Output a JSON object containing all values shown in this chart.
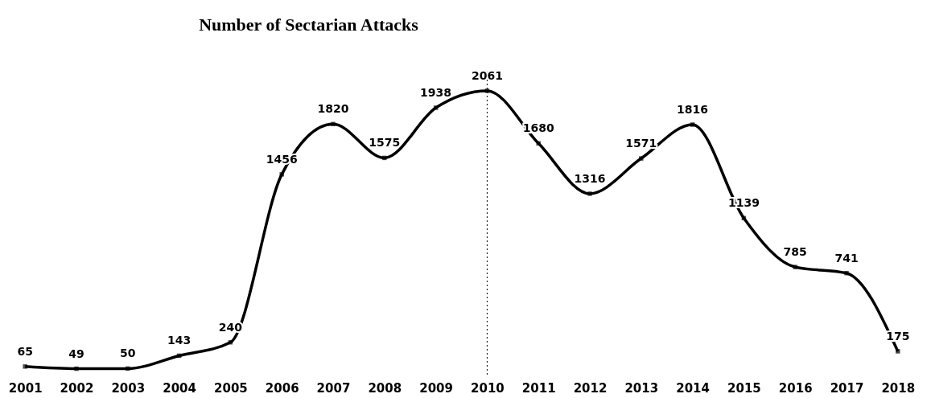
{
  "chart_data": {
    "type": "line",
    "title": "Number of Sectarian Attacks",
    "categories": [
      "2001",
      "2002",
      "2003",
      "2004",
      "2005",
      "2006",
      "2007",
      "2008",
      "2009",
      "2010",
      "2011",
      "2012",
      "2013",
      "2014",
      "2015",
      "2016",
      "2017",
      "2018"
    ],
    "series": [
      {
        "color": "#000000",
        "values": [
          65,
          49,
          50,
          143,
          240,
          1456,
          1820,
          1575,
          1938,
          2061,
          1680,
          1316,
          1571,
          1816,
          1139,
          785,
          741,
          175
        ]
      }
    ],
    "data_labels": true,
    "marker": "square",
    "line_style": "solid",
    "grid": false,
    "tick_labels": "x",
    "ref_lines": [
      {
        "axis": "x",
        "value": "2010",
        "color": "#000000",
        "line_style": "dotted"
      }
    ]
  }
}
